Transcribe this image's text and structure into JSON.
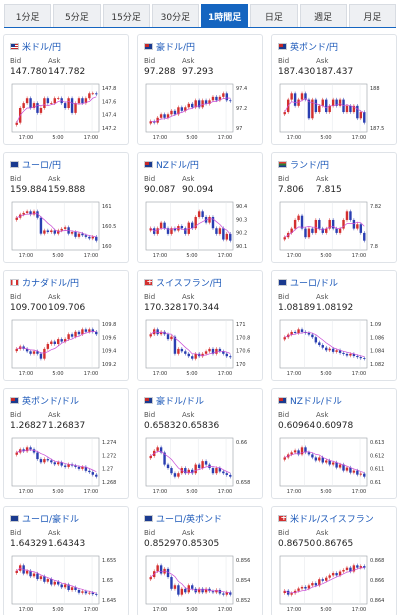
{
  "tabs": [
    {
      "label": "1分足",
      "active": false
    },
    {
      "label": "5分足",
      "active": false
    },
    {
      "label": "15分足",
      "active": false
    },
    {
      "label": "30分足",
      "active": false
    },
    {
      "label": "1時間足",
      "active": true
    },
    {
      "label": "日足",
      "active": false
    },
    {
      "label": "週足",
      "active": false
    },
    {
      "label": "月足",
      "active": false
    }
  ],
  "labels": {
    "bid": "Bid",
    "ask": "Ask"
  },
  "colors": {
    "up": "#d32f2f",
    "down": "#2a3eb1",
    "ma": "#c94bd6",
    "accent": "#1565c0"
  },
  "cards": [
    {
      "pair": "米ドル/円",
      "flag": "us",
      "bid": "147.780",
      "ask": "147.782",
      "y_ticks": [
        "147.8",
        "147.6",
        "147.4",
        "147.2"
      ],
      "x_ticks": [
        "17:00",
        "5:00",
        "17:00"
      ],
      "closes": [
        147.2,
        147.5,
        147.6,
        147.7,
        147.5,
        147.6,
        147.4,
        147.5,
        147.7,
        147.6,
        147.6,
        147.7,
        147.7,
        147.6,
        147.5,
        147.7,
        147.4,
        147.6,
        147.7,
        147.6,
        147.7,
        147.8,
        147.8,
        147.78
      ]
    },
    {
      "pair": "豪ドル/円",
      "flag": "au",
      "bid": "97.288",
      "ask": "97.293",
      "y_ticks": [
        "97.4",
        "97.2",
        "97"
      ],
      "x_ticks": [
        "17:00",
        "5:00",
        "17:00"
      ],
      "closes": [
        97.0,
        96.98,
        97.05,
        97.1,
        97.05,
        97.1,
        97.15,
        97.1,
        97.2,
        97.15,
        97.2,
        97.25,
        97.2,
        97.3,
        97.2,
        97.3,
        97.25,
        97.3,
        97.35,
        97.3,
        97.35,
        97.4,
        97.3,
        97.29
      ]
    },
    {
      "pair": "英ポンド/円",
      "flag": "gb",
      "bid": "187.430",
      "ask": "187.437",
      "y_ticks": [
        "188",
        "187.5"
      ],
      "x_ticks": [
        "17:00",
        "5:00",
        "17:00"
      ],
      "closes": [
        187.6,
        187.8,
        187.9,
        187.7,
        187.8,
        187.9,
        187.8,
        187.5,
        187.8,
        187.6,
        187.7,
        187.8,
        187.6,
        187.7,
        187.8,
        187.7,
        187.8,
        187.6,
        187.7,
        187.6,
        187.7,
        187.5,
        187.6,
        187.43
      ]
    },
    {
      "pair": "ユーロ/円",
      "flag": "eu",
      "bid": "159.884",
      "ask": "159.888",
      "y_ticks": [
        "161",
        "160.5",
        "160"
      ],
      "x_ticks": [
        "17:00",
        "5:00",
        "17:00"
      ],
      "closes": [
        160.6,
        160.7,
        160.75,
        160.8,
        160.7,
        160.8,
        160.6,
        160.1,
        160.2,
        160.15,
        160.2,
        160.1,
        160.2,
        160.25,
        160.3,
        160.1,
        160.15,
        160.0,
        160.1,
        160.05,
        160.0,
        159.95,
        160.0,
        159.88
      ]
    },
    {
      "pair": "NZドル/円",
      "flag": "nz",
      "bid": "90.087",
      "ask": "90.094",
      "y_ticks": [
        "90.4",
        "90.3",
        "90.2",
        "90.1"
      ],
      "x_ticks": [
        "17:00",
        "5:00",
        "17:00"
      ],
      "closes": [
        90.2,
        90.15,
        90.2,
        90.25,
        90.2,
        90.15,
        90.2,
        90.18,
        90.22,
        90.2,
        90.15,
        90.25,
        90.2,
        90.3,
        90.35,
        90.3,
        90.25,
        90.3,
        90.2,
        90.15,
        90.2,
        90.1,
        90.15,
        90.09
      ]
    },
    {
      "pair": "ランド/円",
      "flag": "za",
      "bid": "7.806",
      "ask": "7.815",
      "y_ticks": [
        "7.82",
        "7.8"
      ],
      "x_ticks": [
        "17:00",
        "5:00",
        "17:00"
      ],
      "closes": [
        7.81,
        7.815,
        7.82,
        7.83,
        7.835,
        7.82,
        7.81,
        7.82,
        7.815,
        7.83,
        7.82,
        7.815,
        7.82,
        7.83,
        7.82,
        7.815,
        7.82,
        7.83,
        7.84,
        7.83,
        7.82,
        7.825,
        7.815,
        7.806
      ]
    },
    {
      "pair": "カナダドル/円",
      "flag": "ca",
      "bid": "109.700",
      "ask": "109.706",
      "y_ticks": [
        "109.8",
        "109.6",
        "109.4",
        "109.2"
      ],
      "x_ticks": [
        "17:00",
        "5:00",
        "17:00"
      ],
      "closes": [
        109.4,
        109.45,
        109.4,
        109.35,
        109.3,
        109.35,
        109.3,
        109.2,
        109.4,
        109.5,
        109.55,
        109.5,
        109.6,
        109.55,
        109.6,
        109.7,
        109.65,
        109.75,
        109.7,
        109.8,
        109.75,
        109.8,
        109.75,
        109.7
      ]
    },
    {
      "pair": "スイスフラン/円",
      "flag": "ch",
      "bid": "170.328",
      "ask": "170.344",
      "y_ticks": [
        "171",
        "170.8",
        "170.6",
        "170"
      ],
      "x_ticks": [
        "17:00",
        "5:00",
        "17:00"
      ],
      "closes": [
        170.8,
        170.9,
        170.8,
        170.85,
        170.8,
        170.7,
        170.75,
        170.4,
        170.5,
        170.45,
        170.4,
        170.35,
        170.3,
        170.4,
        170.35,
        170.4,
        170.45,
        170.5,
        170.4,
        170.5,
        170.45,
        170.4,
        170.35,
        170.33
      ]
    },
    {
      "pair": "ユーロ/ドル",
      "flag": "eu",
      "bid": "1.08189",
      "ask": "1.08192",
      "y_ticks": [
        "1.09",
        "1.086",
        "1.084",
        "1.082"
      ],
      "x_ticks": [
        "17:00",
        "5:00",
        "17:00"
      ],
      "closes": [
        1.086,
        1.0865,
        1.087,
        1.0868,
        1.0875,
        1.087,
        1.0868,
        1.0865,
        1.086,
        1.085,
        1.0845,
        1.084,
        1.0835,
        1.0838,
        1.0832,
        1.0835,
        1.083,
        1.0828,
        1.0825,
        1.0828,
        1.0824,
        1.0822,
        1.082,
        1.0819
      ]
    },
    {
      "pair": "英ポンド/ドル",
      "flag": "gb",
      "bid": "1.26827",
      "ask": "1.26837",
      "y_ticks": [
        "1.274",
        "1.272",
        "1.27",
        "1.268"
      ],
      "x_ticks": [
        "17:00",
        "5:00",
        "17:00"
      ],
      "closes": [
        1.272,
        1.2725,
        1.2722,
        1.2728,
        1.2725,
        1.272,
        1.271,
        1.2705,
        1.271,
        1.2708,
        1.2705,
        1.2702,
        1.2705,
        1.27,
        1.2698,
        1.2702,
        1.27,
        1.2698,
        1.2695,
        1.2698,
        1.2692,
        1.269,
        1.2686,
        1.2683
      ]
    },
    {
      "pair": "豪ドル/ドル",
      "flag": "au",
      "bid": "0.65832",
      "ask": "0.65836",
      "y_ticks": [
        "0.66",
        "0.658"
      ],
      "x_ticks": [
        "17:00",
        "5:00",
        "17:00"
      ],
      "closes": [
        0.6595,
        0.6598,
        0.66,
        0.6597,
        0.659,
        0.6588,
        0.6585,
        0.6583,
        0.6585,
        0.6588,
        0.6585,
        0.6587,
        0.6585,
        0.659,
        0.6588,
        0.6592,
        0.659,
        0.6588,
        0.6585,
        0.6588,
        0.6586,
        0.6585,
        0.6584,
        0.6583
      ]
    },
    {
      "pair": "NZドル/ドル",
      "flag": "nz",
      "bid": "0.60964",
      "ask": "0.60978",
      "y_ticks": [
        "0.613",
        "0.612",
        "0.611",
        "0.61"
      ],
      "x_ticks": [
        "17:00",
        "5:00",
        "17:00"
      ],
      "closes": [
        0.6115,
        0.6118,
        0.612,
        0.6122,
        0.6118,
        0.6125,
        0.612,
        0.6118,
        0.6115,
        0.6112,
        0.6115,
        0.611,
        0.6112,
        0.6108,
        0.611,
        0.6105,
        0.6108,
        0.6102,
        0.6105,
        0.61,
        0.6102,
        0.6098,
        0.6099,
        0.6096
      ]
    },
    {
      "pair": "ユーロ/豪ドル",
      "flag": "eu",
      "bid": "1.64329",
      "ask": "1.64343",
      "y_ticks": [
        "1.655",
        "1.65",
        "1.645"
      ],
      "x_ticks": [
        "17:00",
        "5:00",
        "17:00"
      ],
      "closes": [
        1.652,
        1.654,
        1.651,
        1.652,
        1.65,
        1.651,
        1.649,
        1.65,
        1.648,
        1.649,
        1.647,
        1.648,
        1.647,
        1.646,
        1.647,
        1.645,
        1.646,
        1.645,
        1.644,
        1.6445,
        1.6438,
        1.644,
        1.6435,
        1.6433
      ]
    },
    {
      "pair": "ユーロ/英ポンド",
      "flag": "eu",
      "bid": "0.85297",
      "ask": "0.85305",
      "y_ticks": [
        "0.856",
        "0.854",
        "0.852"
      ],
      "x_ticks": [
        "17:00",
        "5:00",
        "17:00"
      ],
      "closes": [
        0.8545,
        0.855,
        0.8555,
        0.8548,
        0.8552,
        0.8545,
        0.8535,
        0.8538,
        0.853,
        0.8535,
        0.8532,
        0.8538,
        0.8535,
        0.8532,
        0.8535,
        0.8532,
        0.8535,
        0.8533,
        0.8532,
        0.8534,
        0.8531,
        0.853,
        0.8532,
        0.853
      ]
    },
    {
      "pair": "米ドル/スイスフラン",
      "flag": "ch",
      "bid": "0.86750",
      "ask": "0.86765",
      "y_ticks": [
        "0.868",
        "0.866",
        "0.864"
      ],
      "x_ticks": [
        "17:00",
        "5:00",
        "17:00"
      ],
      "closes": [
        0.8645,
        0.864,
        0.8642,
        0.8645,
        0.8648,
        0.865,
        0.8648,
        0.8652,
        0.8655,
        0.8652,
        0.866,
        0.8658,
        0.8662,
        0.8665,
        0.8668,
        0.8665,
        0.867,
        0.8672,
        0.8675,
        0.867,
        0.8678,
        0.8675,
        0.8677,
        0.8675
      ]
    }
  ]
}
